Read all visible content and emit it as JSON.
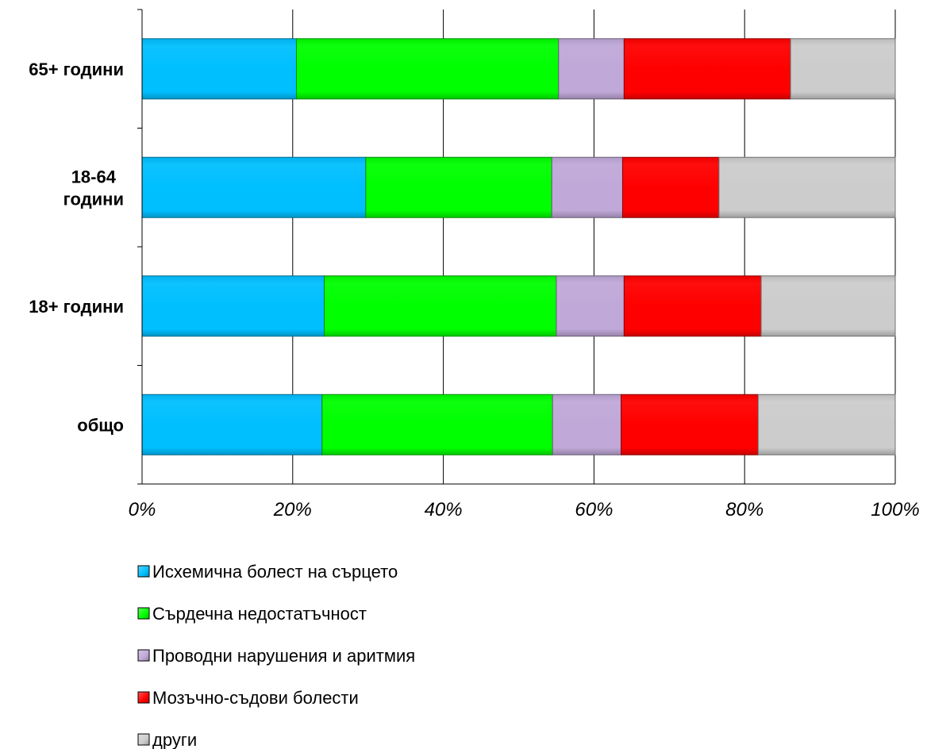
{
  "chart_data": {
    "type": "bar",
    "orientation": "horizontal",
    "stacked": "percent",
    "categories": [
      "65+ години",
      "18-64 години",
      "18+ години",
      "общо"
    ],
    "category_lines": [
      [
        "65+ години"
      ],
      [
        "18-64",
        "години"
      ],
      [
        "18+ години"
      ],
      [
        "общо"
      ]
    ],
    "series": [
      {
        "name": "Исхемична болест на сърцето",
        "color": "#00bfff",
        "values": [
          20.5,
          29.7,
          24.2,
          23.9
        ]
      },
      {
        "name": "Сърдечна недостатъчност",
        "color": "#00ff00",
        "values": [
          34.8,
          24.7,
          30.8,
          30.6
        ]
      },
      {
        "name": "Проводни нарушения и аритмия",
        "color": "#c0a8d8",
        "values": [
          8.7,
          9.4,
          9.0,
          9.1
        ]
      },
      {
        "name": "Мозъчно-съдови болести",
        "color": "#ff0000",
        "values": [
          22.1,
          12.8,
          18.2,
          18.2
        ]
      },
      {
        "name": "други",
        "color": "#cccccc",
        "values": [
          13.9,
          23.4,
          17.8,
          18.2
        ]
      }
    ],
    "x_ticks": [
      "0%",
      "20%",
      "40%",
      "60%",
      "80%",
      "100%"
    ],
    "xlim": [
      0,
      100
    ],
    "grid": true,
    "legend_position": "bottom",
    "title": "",
    "xlabel": "",
    "ylabel": ""
  }
}
